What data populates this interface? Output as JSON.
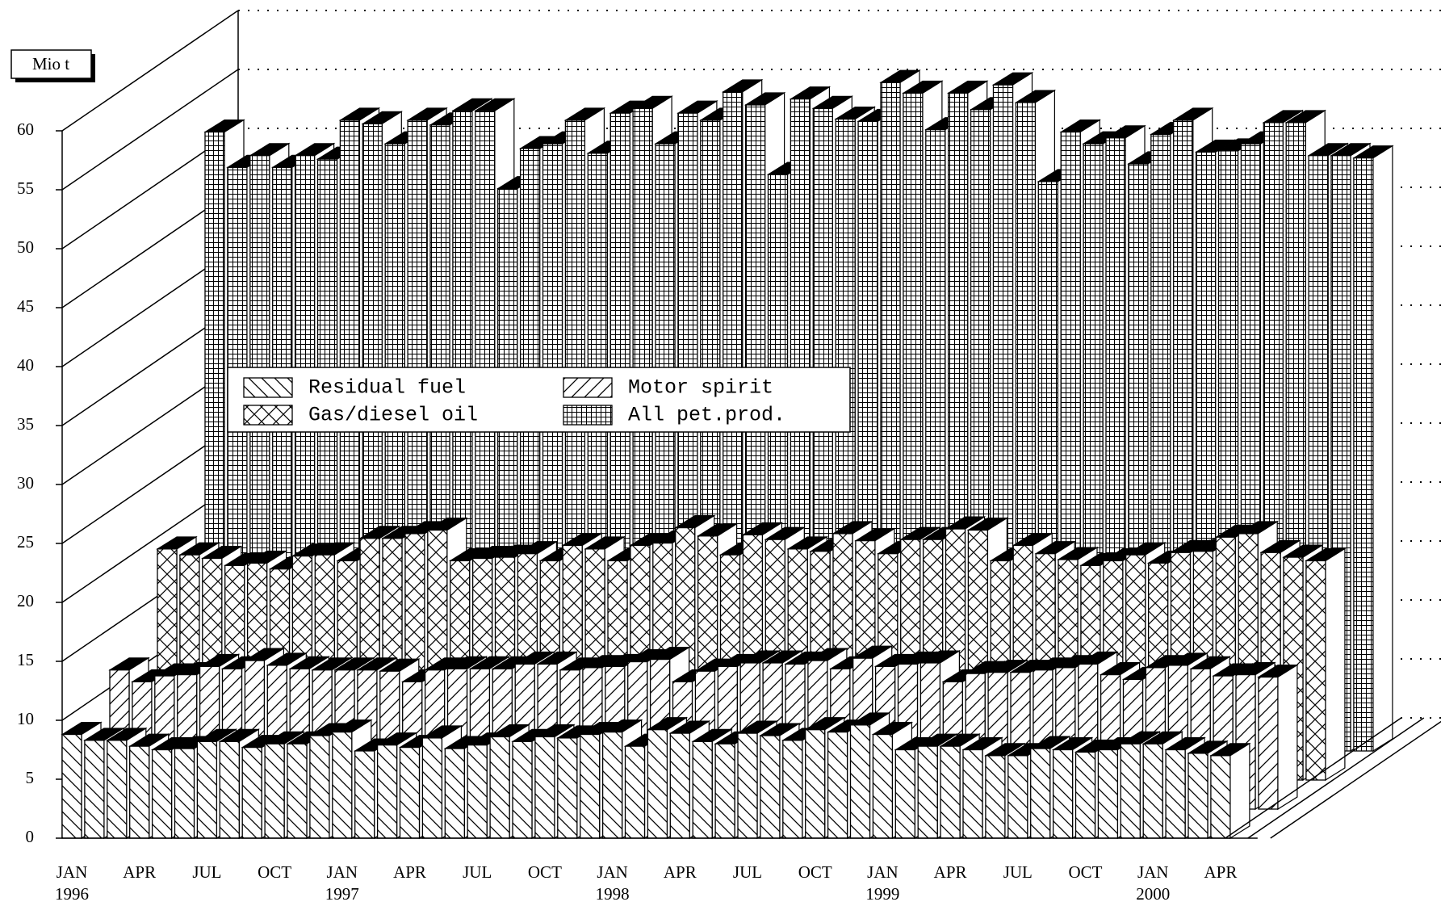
{
  "chart_data": {
    "type": "bar3d",
    "axis_label": "Mio t",
    "categories": [
      "JAN",
      null,
      null,
      "APR",
      null,
      null,
      "JUL",
      null,
      null,
      "OCT",
      null,
      null,
      "JAN",
      null,
      null,
      "APR",
      null,
      null,
      "JUL",
      null,
      null,
      "OCT",
      null,
      null,
      "JAN",
      null,
      null,
      "APR",
      null,
      null,
      "JUL",
      null,
      null,
      "OCT",
      null,
      null,
      "JAN",
      null,
      null,
      "APR",
      null,
      null,
      "JUL",
      null,
      null,
      "OCT",
      null,
      null,
      "JAN",
      null,
      null,
      "APR"
    ],
    "category_years": [
      "1996",
      null,
      null,
      null,
      null,
      null,
      null,
      null,
      null,
      null,
      null,
      null,
      "1997",
      null,
      null,
      null,
      null,
      null,
      null,
      null,
      null,
      null,
      null,
      null,
      "1998",
      null,
      null,
      null,
      null,
      null,
      null,
      null,
      null,
      null,
      null,
      null,
      "1999",
      null,
      null,
      null,
      null,
      null,
      null,
      null,
      null,
      null,
      null,
      null,
      "2000",
      null,
      null,
      null
    ],
    "series": [
      {
        "name": "Residual fuel",
        "color": "#000000",
        "pattern": "back-diagonal",
        "values": [
          8.8,
          8.3,
          8.3,
          7.8,
          7.5,
          7.6,
          8.2,
          8.2,
          7.7,
          8.0,
          8.0,
          8.7,
          9.0,
          7.4,
          7.9,
          7.7,
          8.5,
          7.6,
          7.9,
          8.6,
          8.2,
          8.6,
          8.5,
          8.8,
          9.0,
          7.8,
          9.2,
          8.9,
          8.2,
          8.0,
          8.9,
          8.7,
          8.3,
          9.2,
          9.0,
          9.6,
          8.8,
          7.5,
          7.8,
          7.8,
          7.5,
          7.0,
          7.0,
          7.6,
          7.5,
          7.3,
          7.5,
          8.0,
          8.0,
          7.5,
          7.2,
          7.0
        ]
      },
      {
        "name": "Motor spirit",
        "color": "#000000",
        "pattern": "diagonal",
        "values": [
          11.8,
          10.8,
          11.3,
          11.4,
          12.1,
          11.9,
          12.6,
          12.2,
          11.9,
          11.8,
          11.8,
          11.8,
          11.7,
          10.8,
          11.8,
          11.9,
          11.9,
          11.9,
          12.3,
          12.3,
          11.8,
          12.0,
          12.1,
          12.5,
          12.7,
          10.8,
          11.7,
          12.1,
          12.4,
          12.4,
          12.3,
          12.6,
          11.9,
          12.8,
          12.1,
          12.3,
          12.4,
          10.8,
          11.5,
          11.6,
          11.6,
          11.8,
          12.0,
          12.3,
          11.4,
          11.0,
          12.0,
          12.2,
          11.9,
          11.3,
          11.4,
          11.2
        ]
      },
      {
        "name": "Gas/diesel oil",
        "color": "#000000",
        "pattern": "crosshatch",
        "values": [
          19.6,
          19.1,
          18.8,
          18.2,
          18.4,
          17.9,
          19.0,
          19.1,
          18.6,
          20.5,
          20.5,
          20.9,
          21.2,
          18.6,
          18.8,
          18.9,
          19.2,
          18.6,
          19.9,
          19.6,
          18.6,
          19.9,
          20.1,
          21.4,
          20.7,
          19.1,
          20.8,
          20.4,
          19.6,
          19.4,
          20.9,
          20.3,
          19.2,
          20.4,
          20.4,
          21.3,
          21.2,
          18.6,
          19.9,
          19.2,
          18.7,
          18.2,
          18.6,
          19.1,
          18.4,
          19.3,
          19.4,
          20.6,
          20.9,
          19.3,
          18.9,
          18.6
        ]
      },
      {
        "name": "All pet.prod.",
        "color": "#000000",
        "pattern": "grid",
        "values": [
          52.5,
          49.5,
          50.5,
          49.5,
          50.5,
          50.2,
          53.5,
          53.2,
          51.5,
          53.5,
          53.1,
          54.3,
          54.3,
          47.7,
          51.1,
          51.5,
          53.5,
          50.7,
          54.1,
          54.5,
          51.5,
          54.1,
          53.5,
          55.9,
          54.8,
          48.9,
          55.3,
          54.5,
          53.6,
          53.4,
          56.7,
          55.8,
          52.7,
          55.8,
          54.4,
          56.5,
          55.0,
          48.3,
          52.5,
          51.5,
          52.0,
          49.8,
          52.3,
          53.5,
          50.8,
          50.9,
          51.5,
          53.3,
          53.3,
          50.5,
          50.5,
          50.3
        ]
      }
    ],
    "ylim": [
      0,
      60
    ],
    "yticks": [
      0,
      5,
      10,
      15,
      20,
      25,
      30,
      35,
      40,
      45,
      50,
      55,
      60
    ],
    "grid": true
  }
}
